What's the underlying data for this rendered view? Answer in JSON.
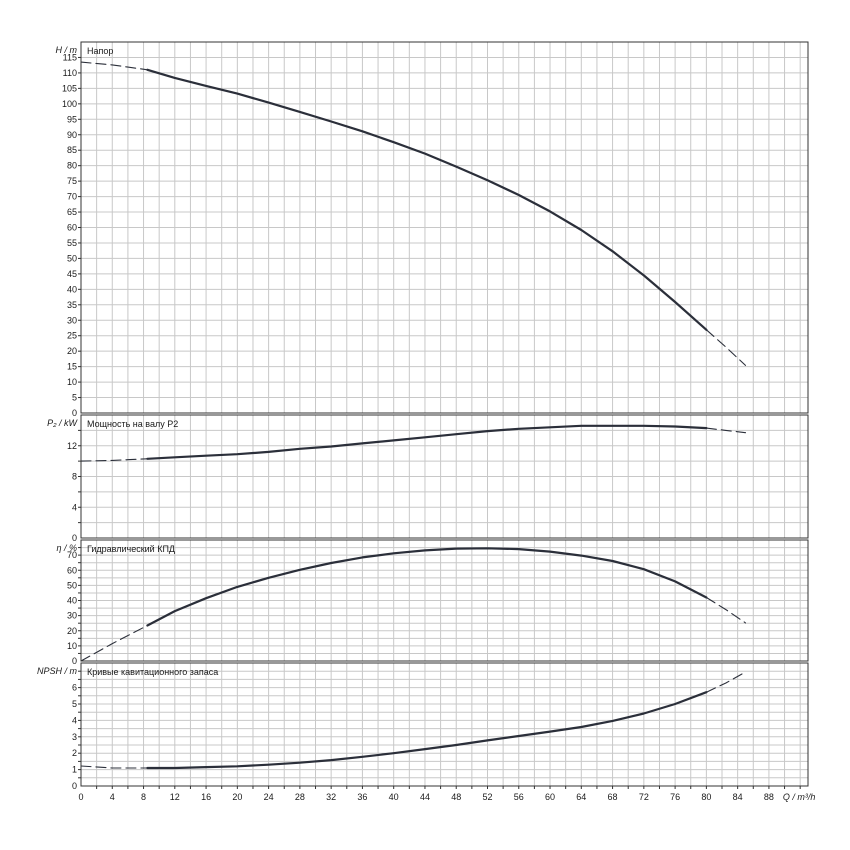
{
  "colors": {
    "grid": "#c8c8c8",
    "frame": "#333333",
    "curve": "#2b2f3a",
    "text": "#1a1a1a"
  },
  "chart_data": [
    {
      "type": "line",
      "title": "Напор",
      "ylabel": "H / m",
      "ylim": [
        0,
        120
      ],
      "yticks": [
        0,
        5,
        10,
        15,
        20,
        25,
        30,
        35,
        40,
        45,
        50,
        55,
        60,
        65,
        70,
        75,
        80,
        85,
        90,
        95,
        100,
        105,
        110,
        115
      ],
      "grid": true,
      "series": [
        {
          "style": "dashed",
          "x": [
            0,
            4,
            8.5
          ],
          "y": [
            113.5,
            112.6,
            111.0
          ]
        },
        {
          "style": "solid",
          "x": [
            8.5,
            12,
            16,
            20,
            24,
            28,
            32,
            36,
            40,
            44,
            48,
            52,
            56,
            60,
            64,
            68,
            72,
            76,
            80
          ],
          "y": [
            111.0,
            108.4,
            105.8,
            103.3,
            100.4,
            97.4,
            94.3,
            91.1,
            87.6,
            83.9,
            79.7,
            75.3,
            70.5,
            65.2,
            59.2,
            52.3,
            44.5,
            35.9,
            26.9
          ]
        },
        {
          "style": "dashed",
          "x": [
            80,
            82.5,
            85
          ],
          "y": [
            26.9,
            21.3,
            15.4
          ]
        }
      ]
    },
    {
      "type": "line",
      "title": "Мощность на валу P2",
      "ylabel": "P₂ / kW",
      "ylim": [
        0,
        16
      ],
      "yticks": [
        0,
        4,
        8,
        12
      ],
      "grid": true,
      "series": [
        {
          "style": "dashed",
          "x": [
            0,
            4,
            8.5
          ],
          "y": [
            10.0,
            10.1,
            10.3
          ]
        },
        {
          "style": "solid",
          "x": [
            8.5,
            12,
            16,
            20,
            24,
            28,
            32,
            36,
            40,
            44,
            48,
            52,
            56,
            60,
            64,
            68,
            72,
            76,
            80
          ],
          "y": [
            10.3,
            10.5,
            10.7,
            10.9,
            11.2,
            11.6,
            11.9,
            12.3,
            12.7,
            13.1,
            13.5,
            13.9,
            14.2,
            14.4,
            14.6,
            14.6,
            14.6,
            14.5,
            14.3
          ]
        },
        {
          "style": "dashed",
          "x": [
            80,
            82.5,
            85
          ],
          "y": [
            14.3,
            14.0,
            13.7
          ]
        }
      ]
    },
    {
      "type": "line",
      "title": "Гидравлический КПД",
      "ylabel": "η / %",
      "ylim": [
        0,
        80
      ],
      "yticks": [
        0,
        10,
        20,
        30,
        40,
        50,
        60,
        70
      ],
      "grid": true,
      "series": [
        {
          "style": "dashed",
          "x": [
            0,
            4,
            8.5
          ],
          "y": [
            0,
            11.5,
            23.5
          ]
        },
        {
          "style": "solid",
          "x": [
            8.5,
            12,
            16,
            20,
            24,
            28,
            32,
            36,
            40,
            44,
            48,
            52,
            56,
            60,
            64,
            68,
            72,
            76,
            80
          ],
          "y": [
            23.5,
            33,
            41.5,
            49,
            55,
            60.3,
            64.8,
            68.5,
            71.2,
            73.1,
            74.3,
            74.5,
            74,
            72.3,
            69.7,
            66.1,
            60.7,
            52.6,
            42
          ]
        },
        {
          "style": "dashed",
          "x": [
            80,
            82.5,
            85
          ],
          "y": [
            42,
            34,
            25.2
          ]
        }
      ]
    },
    {
      "type": "line",
      "title": "Кривые кавитационного запаса",
      "ylabel": "NPSH / m",
      "ylim": [
        0,
        7.5
      ],
      "yticks": [
        0,
        1,
        2,
        3,
        4,
        5,
        6
      ],
      "xlabel": "Q / m³/h",
      "xlim": [
        0,
        93
      ],
      "xticks": [
        0,
        4,
        8,
        12,
        16,
        20,
        24,
        28,
        32,
        36,
        40,
        44,
        48,
        52,
        56,
        60,
        64,
        68,
        72,
        76,
        80,
        84,
        88
      ],
      "grid": true,
      "series": [
        {
          "style": "dashed",
          "x": [
            0,
            4,
            8.5
          ],
          "y": [
            1.22,
            1.1,
            1.1
          ]
        },
        {
          "style": "solid",
          "x": [
            8.5,
            12,
            16,
            20,
            24,
            28,
            32,
            36,
            40,
            44,
            48,
            52,
            56,
            60,
            64,
            68,
            72,
            76,
            80
          ],
          "y": [
            1.1,
            1.1,
            1.15,
            1.2,
            1.3,
            1.42,
            1.58,
            1.78,
            2.0,
            2.25,
            2.5,
            2.78,
            3.05,
            3.32,
            3.6,
            3.97,
            4.42,
            5.0,
            5.72
          ]
        },
        {
          "style": "dashed",
          "x": [
            80,
            82.5,
            85
          ],
          "y": [
            5.72,
            6.28,
            6.95
          ]
        }
      ]
    }
  ]
}
